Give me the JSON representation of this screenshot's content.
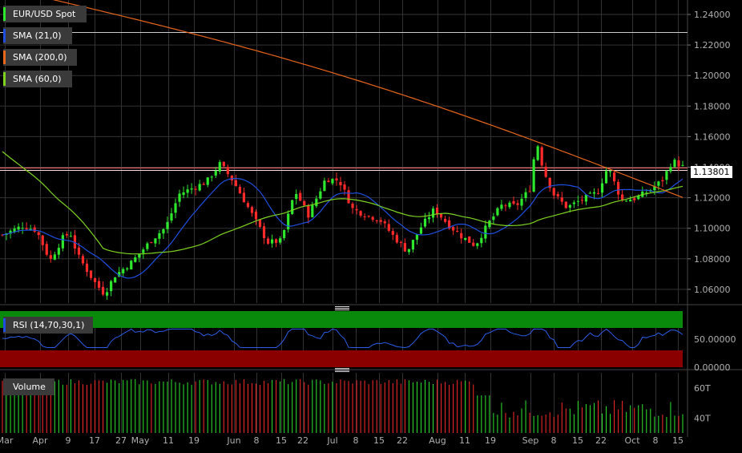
{
  "colors": {
    "bull": "#2ee82e",
    "bear": "#ff2a2a",
    "sma21": "#1e4fe0",
    "sma200": "#e8661c",
    "sma60": "#7ed321",
    "rsi_line": "#2b5de8",
    "rsi_overbought": "#0a8a0a",
    "rsi_oversold": "#8a0000",
    "grid": "#333333",
    "axis_text": "#b0b0b0"
  },
  "legend": {
    "main": "EUR/USD Spot",
    "sma21": "SMA (21,0)",
    "sma200": "SMA (200,0)",
    "sma60": "SMA (60,0)",
    "rsi": "RSI (14,70,30,1)",
    "volume": "Volume"
  },
  "last_price_label": "1.13801",
  "price_axis_ticks": [
    "1.24000",
    "1.22000",
    "1.20000",
    "1.18000",
    "1.16000",
    "1.14000",
    "1.12000",
    "1.10000",
    "1.08000",
    "1.06000"
  ],
  "rsi_axis_ticks": [
    "50.00000",
    "0.00000"
  ],
  "volume_axis_ticks": [
    "60T",
    "40T"
  ],
  "x_ticks": [
    "Mar",
    "Apr",
    "9",
    "17",
    "27",
    "May",
    "11",
    "19",
    "Jun",
    "8",
    "15",
    "22",
    "Jul",
    "8",
    "15",
    "22",
    "Aug",
    "11",
    "19",
    "Sep",
    "8",
    "15",
    "22",
    "Oct",
    "8",
    "15"
  ],
  "chart_data": {
    "type": "candlestick",
    "ylim": [
      1.05,
      1.25
    ],
    "ranges": {
      "rsi": [
        0,
        100
      ],
      "rsi_overbought": 70,
      "rsi_oversold": 30,
      "volume": [
        30,
        70
      ]
    },
    "horizontal_lines": [
      1.2287,
      1.1395,
      1.138
    ],
    "last_price": 1.13801
  }
}
